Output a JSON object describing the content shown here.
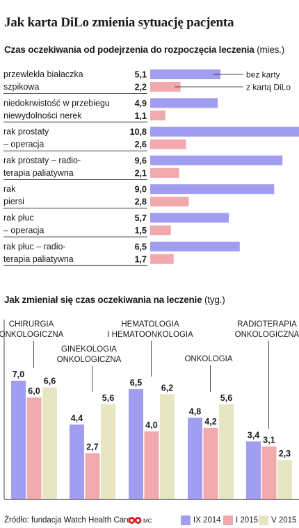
{
  "title": "Jak karta DiLo zmienia sytuację pacjenta",
  "chart1_subtitle": "Czas oczekiwania od podejrzenia do rozpoczęcia leczenia",
  "chart1_unit": "(mies.)",
  "chart2_subtitle": "Jak zmieniał się czas oczekiwania na leczenie",
  "chart2_unit": "(tyg.)",
  "source": "Źródło: fundacja Watch Health Care",
  "logo_text": "MC",
  "colors": {
    "bez_karty": "#a19df0",
    "z_karta": "#f2a9ae",
    "ix2014": "#a19df0",
    "i2015": "#f2a9ae",
    "v2015": "#e7e6c2",
    "rule": "#1a1a1a"
  },
  "chart_data": [
    {
      "type": "bar",
      "orientation": "horizontal",
      "title": "Czas oczekiwania od podejrzenia do rozpoczęcia leczenia (mies.)",
      "categories": [
        [
          "przewlekła białaczka",
          "szpikowa"
        ],
        [
          "niedokrwistość w przebiegu",
          "niewydolności nerek"
        ],
        [
          "rak prostaty",
          "– operacja"
        ],
        [
          "rak prostaty – radio-",
          "terapia paliatywna"
        ],
        [
          "rak",
          "piersi"
        ],
        [
          "rak płuc",
          "– operacja"
        ],
        [
          "rak płuc – radio-",
          "terapia paliatywna"
        ]
      ],
      "series": [
        {
          "name": "bez karty",
          "values": [
            5.1,
            4.9,
            10.8,
            9.6,
            9.0,
            5.7,
            6.5
          ]
        },
        {
          "name": "z kartą DiLo",
          "values": [
            2.2,
            1.1,
            2.6,
            2.1,
            2.8,
            1.5,
            1.7
          ]
        }
      ],
      "value_labels": [
        [
          "5,1",
          "2,2"
        ],
        [
          "4,9",
          "1,1"
        ],
        [
          "10,8",
          "2,6"
        ],
        [
          "9,6",
          "2,1"
        ],
        [
          "9,0",
          "2,8"
        ],
        [
          "5,7",
          "1,5"
        ],
        [
          "6,5",
          "1,7"
        ]
      ],
      "xlim": [
        0,
        10.8
      ]
    },
    {
      "type": "bar",
      "title": "Jak zmieniał się czas oczekiwania na leczenie (tyg.)",
      "categories": [
        [
          "CHIRURGIA",
          "ONKOLOGICZNA"
        ],
        [
          "GINEKOLOGIA",
          "ONKOLOGICZNA"
        ],
        [
          "HEMATOLOGIA",
          "I HEMATOONKOLOGIA"
        ],
        [
          "ONKOLOGIA"
        ],
        [
          "RADIOTERAPIA",
          "ONKOLOGICZNA"
        ]
      ],
      "series": [
        {
          "name": "IX 2014",
          "values": [
            7.0,
            4.4,
            6.5,
            4.8,
            3.4
          ]
        },
        {
          "name": "I 2015",
          "values": [
            6.0,
            2.7,
            4.0,
            4.2,
            3.1
          ]
        },
        {
          "name": "V 2015",
          "values": [
            6.6,
            5.6,
            6.2,
            5.6,
            2.3
          ]
        }
      ],
      "value_labels": [
        [
          "7,0",
          "6,0",
          "6,6"
        ],
        [
          "4,4",
          "2,7",
          "5,6"
        ],
        [
          "6,5",
          "4,0",
          "6,2"
        ],
        [
          "4,8",
          "4,2",
          "5,6"
        ],
        [
          "3,4",
          "3,1",
          "2,3"
        ]
      ],
      "ylim": [
        0,
        8
      ],
      "legend": "bottom"
    }
  ]
}
